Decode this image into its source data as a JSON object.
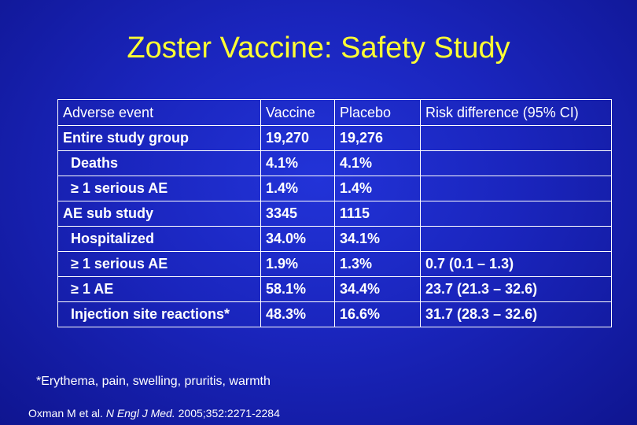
{
  "title": "Zoster Vaccine: Safety Study",
  "table": {
    "headers": [
      "Adverse event",
      "Vaccine",
      "Placebo",
      "Risk difference (95% CI)"
    ],
    "rows": [
      {
        "event": "Entire study group",
        "vaccine": "19,270",
        "placebo": "19,276",
        "risk": ""
      },
      {
        "event": "Deaths",
        "vaccine": "4.1%",
        "placebo": "4.1%",
        "risk": ""
      },
      {
        "event": "≥ 1 serious AE",
        "vaccine": "1.4%",
        "placebo": "1.4%",
        "risk": ""
      },
      {
        "event": "AE sub study",
        "vaccine": "3345",
        "placebo": "1115",
        "risk": ""
      },
      {
        "event": "Hospitalized",
        "vaccine": "34.0%",
        "placebo": "34.1%",
        "risk": ""
      },
      {
        "event": "≥ 1 serious AE",
        "vaccine": "1.9%",
        "placebo": "1.3%",
        "risk": "0.7 (0.1 – 1.3)"
      },
      {
        "event": "≥ 1 AE",
        "vaccine": "58.1%",
        "placebo": "34.4%",
        "risk": "23.7 (21.3 – 32.6)"
      },
      {
        "event": "Injection site reactions*",
        "vaccine": "48.3%",
        "placebo": "16.6%",
        "risk": "31.7 (28.3 – 32.6)"
      }
    ]
  },
  "footnote": "*Erythema, pain, swelling, pruritis, warmth",
  "citation": {
    "authors": "Oxman M et al.",
    "journal": "N Engl J Med.",
    "details": "2005;352:2271-2284"
  },
  "colors": {
    "title": "#ffff33",
    "text": "#ffffff",
    "background": "#1a25bd"
  }
}
